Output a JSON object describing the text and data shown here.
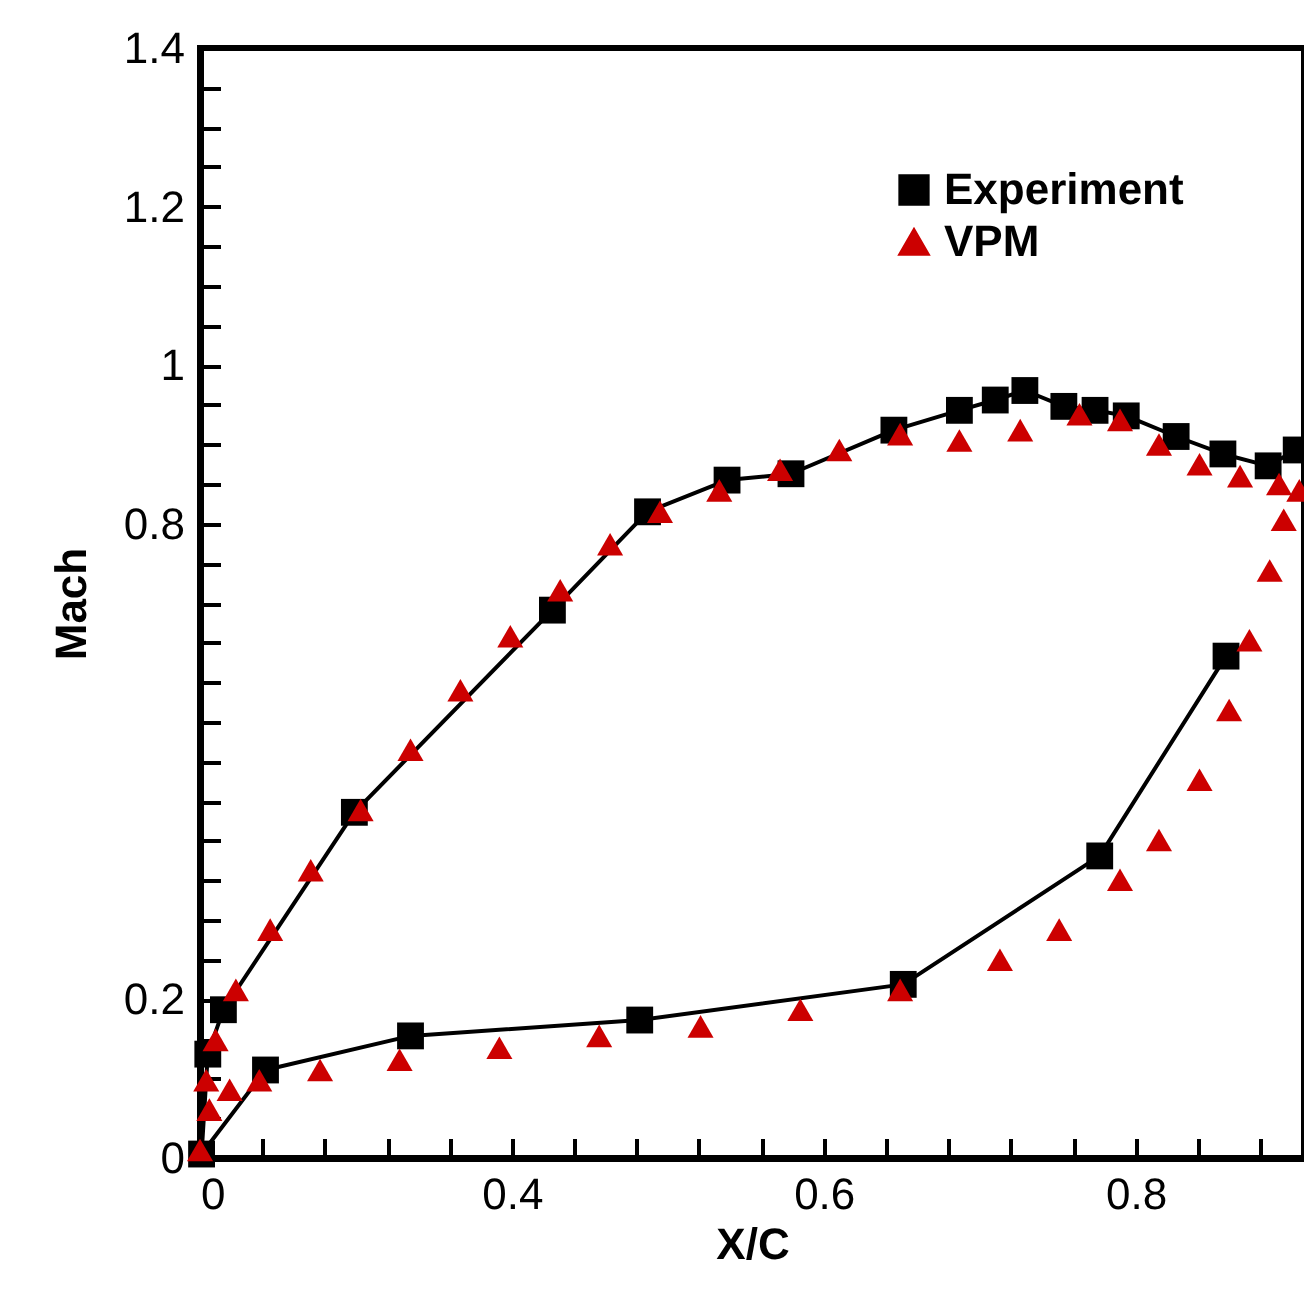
{
  "chart_data": {
    "type": "line",
    "xlabel": "X/C",
    "ylabel": "Mach",
    "xlim": [
      0.2,
      0.908
    ],
    "ylim": [
      0,
      1.4
    ],
    "xticks": [
      {
        "value": 0.2,
        "label": "0"
      },
      {
        "value": 0.24,
        "label": null
      },
      {
        "value": 0.28,
        "label": null
      },
      {
        "value": 0.32,
        "label": null
      },
      {
        "value": 0.36,
        "label": null
      },
      0.4,
      {
        "value": 0.44,
        "label": null
      },
      {
        "value": 0.48,
        "label": null
      },
      {
        "value": 0.52,
        "label": null
      },
      {
        "value": 0.56,
        "label": null
      },
      0.6,
      {
        "value": 0.64,
        "label": null
      },
      {
        "value": 0.68,
        "label": null
      },
      {
        "value": 0.72,
        "label": null
      },
      {
        "value": 0.76,
        "label": null
      },
      0.8,
      {
        "value": 0.84,
        "label": null
      },
      {
        "value": 0.88,
        "label": null
      }
    ],
    "yticks": [
      0,
      {
        "value": 0.05,
        "label": null
      },
      {
        "value": 0.1,
        "label": null
      },
      {
        "value": 0.15,
        "label": null
      },
      0.2,
      {
        "value": 0.25,
        "label": null
      },
      {
        "value": 0.3,
        "label": null
      },
      {
        "value": 0.35,
        "label": null
      },
      {
        "value": 0.4,
        "label": null
      },
      {
        "value": 0.45,
        "label": null
      },
      {
        "value": 0.5,
        "label": null
      },
      {
        "value": 0.55,
        "label": null
      },
      {
        "value": 0.6,
        "label": null
      },
      {
        "value": 0.65,
        "label": null
      },
      {
        "value": 0.7,
        "label": null
      },
      {
        "value": 0.75,
        "label": null
      },
      0.8,
      {
        "value": 0.85,
        "label": null
      },
      {
        "value": 0.9,
        "label": null
      },
      {
        "value": 0.95,
        "label": null
      },
      1,
      {
        "value": 1.05,
        "label": null
      },
      {
        "value": 1.1,
        "label": null
      },
      {
        "value": 1.15,
        "label": null
      },
      1.2,
      {
        "value": 1.25,
        "label": null
      },
      {
        "value": 1.3,
        "label": null
      },
      {
        "value": 1.35,
        "label": null
      },
      1.4
    ],
    "legend": "top right",
    "grid": false,
    "series": [
      {
        "name": "Experiment",
        "type": "line",
        "marker": "square",
        "color": "#000000",
        "x": [
          0.858,
          0.777,
          0.651,
          0.482,
          0.335,
          0.242,
          0.201,
          0.205,
          0.215,
          0.299,
          0.426,
          0.487,
          0.538,
          0.579,
          0.645,
          0.687,
          0.71,
          0.729,
          0.754,
          0.774,
          0.794,
          0.826,
          0.856,
          0.885,
          0.903
        ],
        "values": [
          0.633,
          0.381,
          0.219,
          0.174,
          0.154,
          0.111,
          0.005,
          0.131,
          0.187,
          0.436,
          0.691,
          0.815,
          0.855,
          0.863,
          0.918,
          0.943,
          0.956,
          0.968,
          0.948,
          0.943,
          0.936,
          0.91,
          0.888,
          0.873,
          0.893
        ]
      },
      {
        "name": "VPM",
        "type": "scatter",
        "marker": "triangle",
        "color": "#cc0000",
        "x": [
          0.2,
          0.204,
          0.21,
          0.223,
          0.245,
          0.271,
          0.303,
          0.335,
          0.367,
          0.399,
          0.431,
          0.463,
          0.495,
          0.533,
          0.572,
          0.61,
          0.649,
          0.687,
          0.726,
          0.764,
          0.79,
          0.815,
          0.841,
          0.867,
          0.892,
          0.905,
          0.895,
          0.886,
          0.873,
          0.86,
          0.841,
          0.815,
          0.79,
          0.751,
          0.713,
          0.649,
          0.585,
          0.521,
          0.456,
          0.392,
          0.328,
          0.277,
          0.238,
          0.219,
          0.206
        ],
        "values": [
          0.01,
          0.098,
          0.149,
          0.212,
          0.288,
          0.363,
          0.439,
          0.515,
          0.59,
          0.658,
          0.716,
          0.774,
          0.815,
          0.842,
          0.868,
          0.893,
          0.913,
          0.905,
          0.918,
          0.938,
          0.931,
          0.9,
          0.875,
          0.86,
          0.85,
          0.842,
          0.805,
          0.741,
          0.653,
          0.565,
          0.477,
          0.401,
          0.351,
          0.288,
          0.25,
          0.212,
          0.187,
          0.166,
          0.154,
          0.139,
          0.124,
          0.111,
          0.098,
          0.086,
          0.061
        ]
      }
    ]
  }
}
